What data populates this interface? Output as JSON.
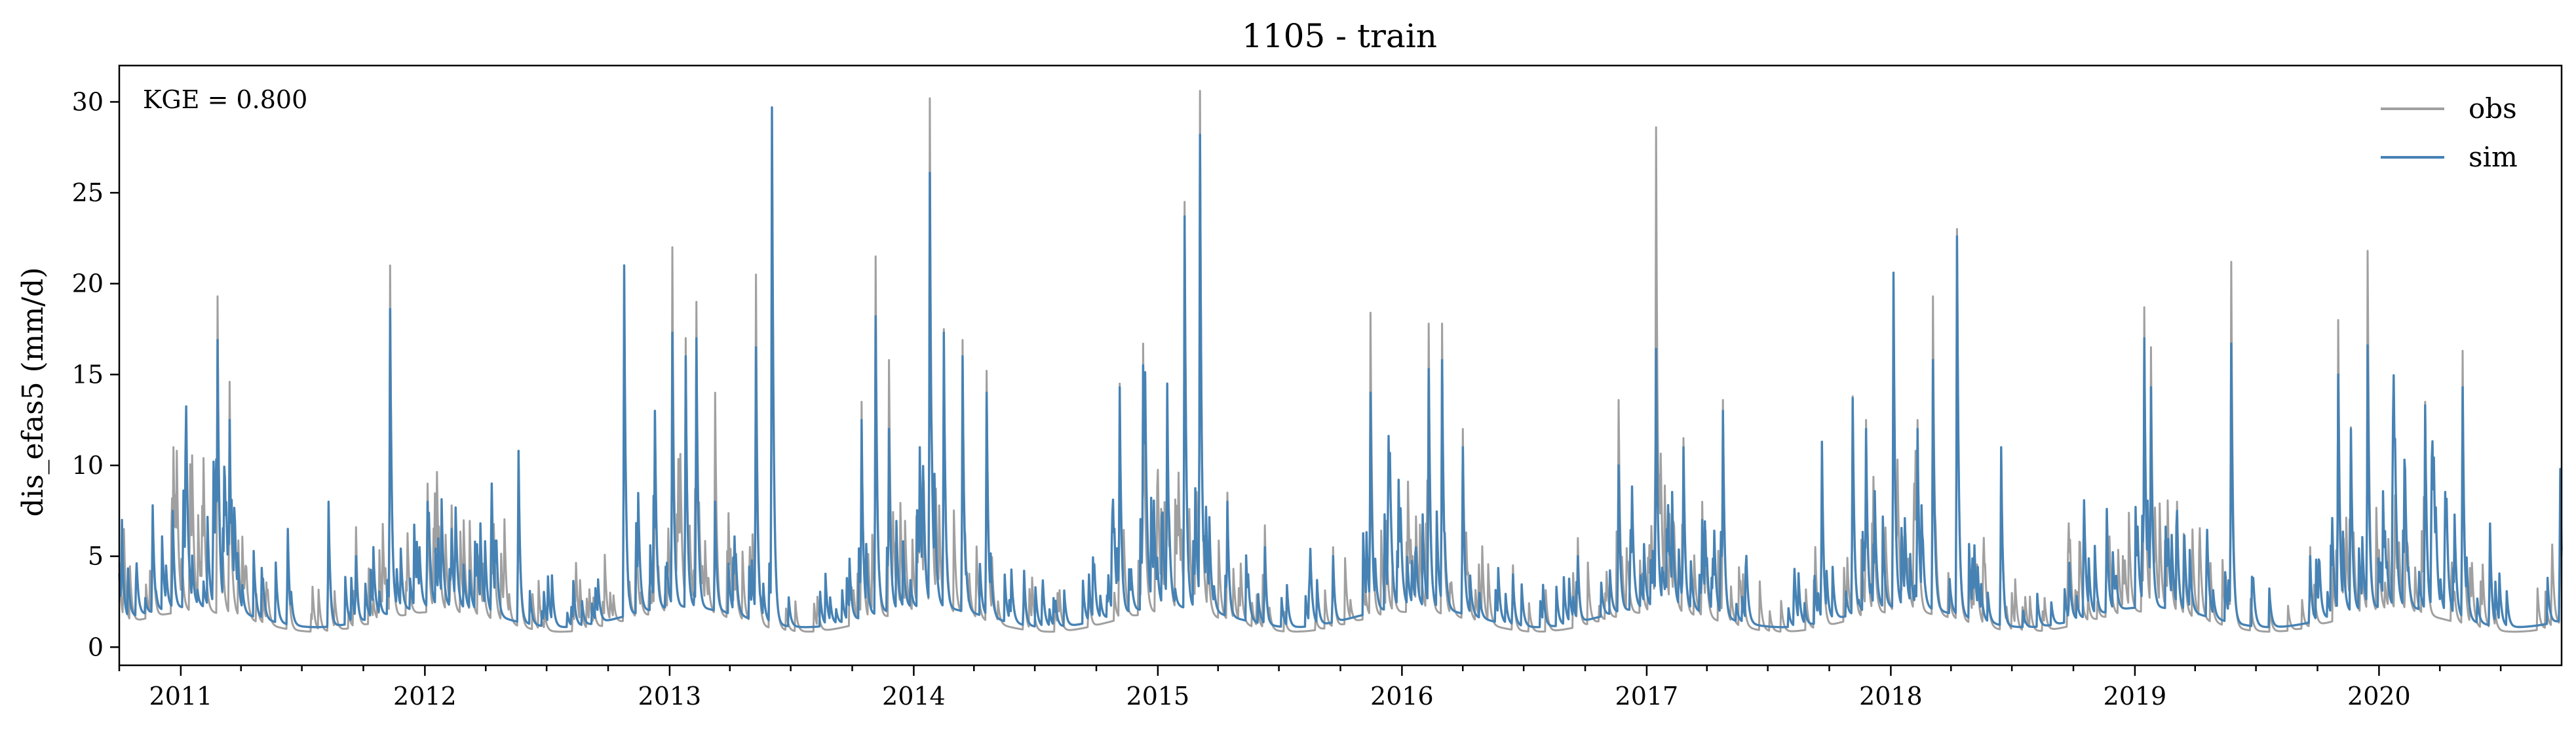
{
  "chart_data": {
    "type": "line",
    "title": "1105 - train",
    "xlabel": "",
    "ylabel": "dis_efas5 (mm/d)",
    "annotation": "KGE = 0.800",
    "xlim": [
      "2010-10-01",
      "2020-09-30"
    ],
    "ylim": [
      -1,
      32
    ],
    "y_ticks": [
      0,
      5,
      10,
      15,
      20,
      25,
      30
    ],
    "x_ticks": [
      "2011",
      "2012",
      "2013",
      "2014",
      "2015",
      "2016",
      "2017",
      "2018",
      "2019",
      "2020"
    ],
    "grid": false,
    "legend_position": "top-right",
    "colors": {
      "obs": "#a0a0a0",
      "sim": "#4682b4"
    },
    "series": [
      {
        "name": "obs",
        "peaks": [
          [
            "2010-10-08",
            6.5
          ],
          [
            "2010-11-20",
            7.5
          ],
          [
            "2010-12-20",
            6.0
          ],
          [
            "2011-02-25",
            19.3
          ],
          [
            "2011-03-15",
            14.6
          ],
          [
            "2011-06-10",
            6.0
          ],
          [
            "2011-08-10",
            7.5
          ],
          [
            "2011-09-20",
            6.6
          ],
          [
            "2011-11-10",
            21.0
          ],
          [
            "2012-01-05",
            9.0
          ],
          [
            "2012-02-10",
            7.8
          ],
          [
            "2012-04-10",
            7.0
          ],
          [
            "2012-05-20",
            10.7
          ],
          [
            "2012-10-25",
            20.5
          ],
          [
            "2012-12-10",
            13.0
          ],
          [
            "2013-01-05",
            22.0
          ],
          [
            "2013-01-25",
            17.0
          ],
          [
            "2013-02-10",
            19.0
          ],
          [
            "2013-03-10",
            14.0
          ],
          [
            "2013-05-10",
            20.5
          ],
          [
            "2013-06-03",
            29.5
          ],
          [
            "2013-10-15",
            13.5
          ],
          [
            "2013-11-05",
            21.5
          ],
          [
            "2013-11-25",
            15.8
          ],
          [
            "2014-01-10",
            10.0
          ],
          [
            "2014-01-25",
            30.2
          ],
          [
            "2014-02-15",
            17.5
          ],
          [
            "2014-03-15",
            16.9
          ],
          [
            "2014-04-20",
            15.2
          ],
          [
            "2014-06-15",
            4.0
          ],
          [
            "2014-09-20",
            3.5
          ],
          [
            "2014-11-05",
            14.5
          ],
          [
            "2014-12-10",
            16.7
          ],
          [
            "2015-01-15",
            13.5
          ],
          [
            "2015-02-10",
            24.5
          ],
          [
            "2015-03-05",
            30.6
          ],
          [
            "2015-04-15",
            8.5
          ],
          [
            "2015-06-10",
            6.7
          ],
          [
            "2015-09-20",
            5.5
          ],
          [
            "2015-11-15",
            18.4
          ],
          [
            "2016-02-10",
            17.8
          ],
          [
            "2016-03-01",
            17.8
          ],
          [
            "2016-04-01",
            12.0
          ],
          [
            "2016-06-15",
            4.5
          ],
          [
            "2016-09-20",
            6.0
          ],
          [
            "2016-11-20",
            13.6
          ],
          [
            "2017-01-15",
            28.6
          ],
          [
            "2017-02-25",
            11.5
          ],
          [
            "2017-03-25",
            8.0
          ],
          [
            "2017-04-25",
            13.6
          ],
          [
            "2017-09-20",
            11.3
          ],
          [
            "2017-11-05",
            13.8
          ],
          [
            "2017-11-25",
            12.5
          ],
          [
            "2018-01-05",
            20.3
          ],
          [
            "2018-02-10",
            12.5
          ],
          [
            "2018-03-05",
            19.3
          ],
          [
            "2018-04-10",
            23.0
          ],
          [
            "2018-06-15",
            11.0
          ],
          [
            "2018-09-25",
            4.5
          ],
          [
            "2018-11-20",
            7.6
          ],
          [
            "2019-01-15",
            18.7
          ],
          [
            "2019-01-25",
            16.5
          ],
          [
            "2019-03-05",
            8.0
          ],
          [
            "2019-05-25",
            21.2
          ],
          [
            "2019-09-20",
            5.5
          ],
          [
            "2019-11-01",
            18.0
          ],
          [
            "2019-11-20",
            12.1
          ],
          [
            "2019-12-15",
            21.8
          ],
          [
            "2020-02-10",
            6.5
          ],
          [
            "2020-03-10",
            13.5
          ],
          [
            "2020-05-05",
            16.3
          ],
          [
            "2020-06-15",
            6.5
          ],
          [
            "2020-09-28",
            9.5
          ]
        ]
      },
      {
        "name": "sim",
        "peaks": [
          [
            "2010-10-05",
            7.0
          ],
          [
            "2010-11-20",
            7.8
          ],
          [
            "2010-12-20",
            7.5
          ],
          [
            "2011-02-25",
            16.9
          ],
          [
            "2011-03-15",
            12.5
          ],
          [
            "2011-06-10",
            6.5
          ],
          [
            "2011-08-10",
            8.0
          ],
          [
            "2011-09-20",
            5.0
          ],
          [
            "2011-11-10",
            18.6
          ],
          [
            "2012-01-05",
            8.0
          ],
          [
            "2012-02-10",
            6.5
          ],
          [
            "2012-04-10",
            9.0
          ],
          [
            "2012-05-20",
            10.8
          ],
          [
            "2012-10-25",
            21.0
          ],
          [
            "2012-12-10",
            13.0
          ],
          [
            "2013-01-05",
            17.3
          ],
          [
            "2013-01-25",
            16.0
          ],
          [
            "2013-02-10",
            17.0
          ],
          [
            "2013-03-10",
            8.0
          ],
          [
            "2013-05-10",
            16.5
          ],
          [
            "2013-06-03",
            29.7
          ],
          [
            "2013-10-15",
            12.5
          ],
          [
            "2013-11-05",
            18.2
          ],
          [
            "2013-11-25",
            12.0
          ],
          [
            "2014-01-10",
            11.0
          ],
          [
            "2014-01-25",
            26.1
          ],
          [
            "2014-02-15",
            17.3
          ],
          [
            "2014-03-15",
            16.0
          ],
          [
            "2014-04-20",
            14.0
          ],
          [
            "2014-06-15",
            4.2
          ],
          [
            "2014-09-20",
            4.0
          ],
          [
            "2014-11-05",
            14.3
          ],
          [
            "2014-12-10",
            15.5
          ],
          [
            "2015-01-15",
            14.5
          ],
          [
            "2015-02-10",
            23.7
          ],
          [
            "2015-03-05",
            28.2
          ],
          [
            "2015-04-15",
            8.0
          ],
          [
            "2015-06-10",
            5.5
          ],
          [
            "2015-09-20",
            5.0
          ],
          [
            "2015-11-15",
            14.0
          ],
          [
            "2016-02-10",
            15.3
          ],
          [
            "2016-03-01",
            15.8
          ],
          [
            "2016-04-01",
            11.0
          ],
          [
            "2016-06-15",
            4.0
          ],
          [
            "2016-09-20",
            5.0
          ],
          [
            "2016-11-20",
            10.0
          ],
          [
            "2017-01-15",
            16.4
          ],
          [
            "2017-02-25",
            11.0
          ],
          [
            "2017-03-25",
            7.0
          ],
          [
            "2017-04-25",
            13.0
          ],
          [
            "2017-09-20",
            11.3
          ],
          [
            "2017-11-05",
            13.7
          ],
          [
            "2017-11-25",
            12.0
          ],
          [
            "2018-01-05",
            20.6
          ],
          [
            "2018-02-10",
            12.0
          ],
          [
            "2018-03-05",
            15.8
          ],
          [
            "2018-04-10",
            22.6
          ],
          [
            "2018-06-15",
            11.0
          ],
          [
            "2018-09-25",
            4.0
          ],
          [
            "2018-11-20",
            7.6
          ],
          [
            "2019-01-15",
            17.0
          ],
          [
            "2019-01-25",
            14.3
          ],
          [
            "2019-03-05",
            7.5
          ],
          [
            "2019-05-25",
            16.7
          ],
          [
            "2019-09-20",
            5.0
          ],
          [
            "2019-11-01",
            15.0
          ],
          [
            "2019-11-20",
            12.0
          ],
          [
            "2019-12-15",
            16.6
          ],
          [
            "2020-02-10",
            6.0
          ],
          [
            "2020-03-10",
            13.3
          ],
          [
            "2020-05-05",
            14.3
          ],
          [
            "2020-06-15",
            6.8
          ],
          [
            "2020-09-28",
            9.8
          ]
        ]
      }
    ]
  }
}
